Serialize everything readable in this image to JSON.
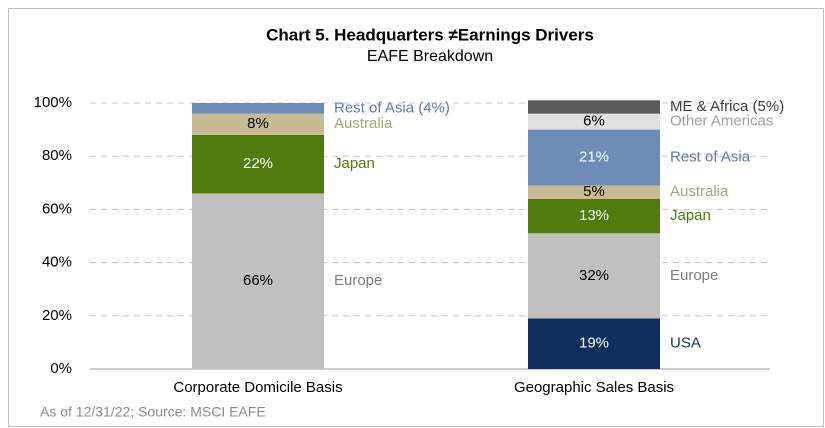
{
  "chart_data": {
    "type": "stacked_bar",
    "title": "Chart 5. Headquarters ≠Earnings Drivers",
    "subtitle": "EAFE Breakdown",
    "footnote": "As of 12/31/22; Source: MSCI EAFE",
    "categories": [
      "Corporate Domicile Basis",
      "Geographic Sales Basis"
    ],
    "ylim": [
      0,
      100
    ],
    "yticks": [
      {
        "value": 0,
        "label": "0%"
      },
      {
        "value": 20,
        "label": "20%"
      },
      {
        "value": 40,
        "label": "40%"
      },
      {
        "value": 60,
        "label": "60%"
      },
      {
        "value": 80,
        "label": "80%"
      },
      {
        "value": 100,
        "label": "100%"
      }
    ],
    "grid": true,
    "series": [
      {
        "labels": [
          null,
          "USA"
        ],
        "color": "#0e2f5f",
        "label_color": "#0e2f5f",
        "value_color": "#ffffff",
        "values": [
          null,
          19
        ],
        "value_labels": [
          null,
          "19%"
        ]
      },
      {
        "labels": [
          "Europe",
          "Europe"
        ],
        "color": "#c0c0c0",
        "label_color": "#7f7f7f",
        "value_color": "#000000",
        "values": [
          66,
          32
        ],
        "value_labels": [
          "66%",
          "32%"
        ]
      },
      {
        "labels": [
          "Japan",
          "Japan"
        ],
        "color": "#4f7c0c",
        "label_color": "#4f7c0c",
        "value_color": "#ffffff",
        "values": [
          22,
          13
        ],
        "value_labels": [
          "22%",
          "13%"
        ]
      },
      {
        "labels": [
          "Australia",
          "Australia"
        ],
        "color": "#c8bb93",
        "label_color": "#b1a374",
        "value_color": "#000000",
        "values": [
          8,
          5
        ],
        "value_labels": [
          "8%",
          "5%"
        ]
      },
      {
        "labels": [
          "Rest of Asia (4%)",
          "Rest of Asia"
        ],
        "color": "#6d8cb7",
        "label_color": "#5b7cab",
        "value_color": "#ffffff",
        "values": [
          4,
          21
        ],
        "value_labels": [
          null,
          "21%"
        ]
      },
      {
        "labels": [
          null,
          "Other Americas"
        ],
        "color": "#e0e0e0",
        "label_color": "#a0a0a0",
        "value_color": "#000000",
        "values": [
          null,
          6
        ],
        "value_labels": [
          null,
          "6%"
        ]
      },
      {
        "labels": [
          null,
          "ME & Africa (5%)"
        ],
        "color": "#595959",
        "label_color": "#404040",
        "value_color": "#ffffff",
        "values": [
          null,
          5
        ],
        "value_labels": [
          null,
          null
        ]
      }
    ]
  }
}
